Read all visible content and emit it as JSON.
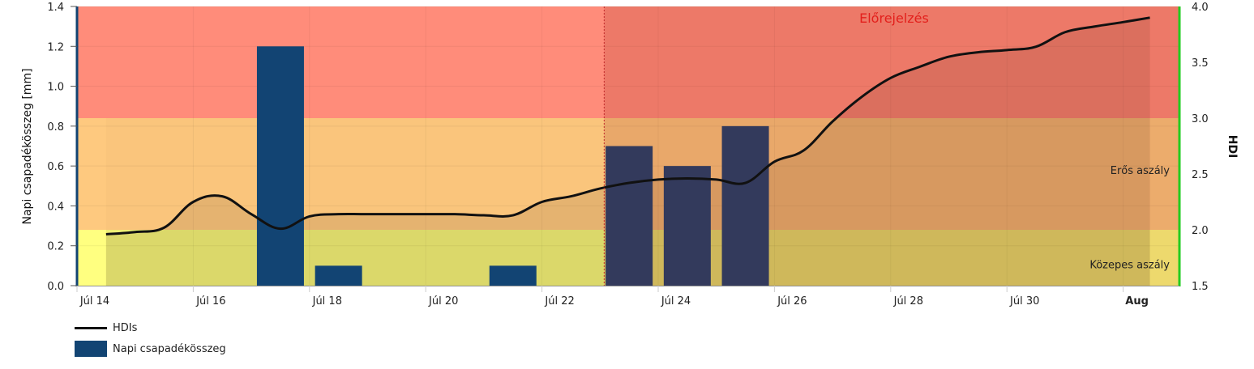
{
  "chart_data": {
    "type": "bar+line",
    "y_left_label": "Napi csapadékösszeg [mm]",
    "y_left_range": [
      0,
      1.4
    ],
    "y_left_ticks": [
      "0.0",
      "0.2",
      "0.4",
      "0.6",
      "0.8",
      "1.0",
      "1.2",
      "1.4"
    ],
    "y_right_label": "HDI",
    "y_right_range": [
      1.5,
      4.0
    ],
    "y_right_ticks": [
      "1.5",
      "2.0",
      "2.5",
      "3.0",
      "3.5",
      "4.0"
    ],
    "x_ticks": [
      {
        "day": 0,
        "label": "Júl 14"
      },
      {
        "day": 2,
        "label": "Júl 16"
      },
      {
        "day": 4,
        "label": "Júl 18"
      },
      {
        "day": 6,
        "label": "Júl 20"
      },
      {
        "day": 8,
        "label": "Júl 22"
      },
      {
        "day": 10,
        "label": "Júl 24"
      },
      {
        "day": 12,
        "label": "Júl 26"
      },
      {
        "day": 14,
        "label": "Júl 28"
      },
      {
        "day": 16,
        "label": "Júl 30"
      },
      {
        "day": 18,
        "label": "Aug",
        "bold": true
      }
    ],
    "forecast_start_day": 9.07,
    "forecast_label": "Előrejelzés",
    "bands": [
      {
        "from": 1.5,
        "to": 2.0,
        "label": "Közepes aszály",
        "color": "#ffff80"
      },
      {
        "from": 2.0,
        "to": 3.0,
        "label": "Erős aszály",
        "color": "#fec97f"
      },
      {
        "from": 3.0,
        "to": 4.0,
        "label": "",
        "color": "#ff8c7a"
      }
    ],
    "series": [
      {
        "name": "Napi csapadékösszeg",
        "type": "bar",
        "color": "#124473",
        "forecast_color": "#333a5c",
        "points": [
          {
            "date": "Júl 17",
            "day": 3,
            "value": 1.2,
            "forecast": false
          },
          {
            "date": "Júl 18",
            "day": 4,
            "value": 0.1,
            "forecast": false
          },
          {
            "date": "Júl 21",
            "day": 7,
            "value": 0.1,
            "forecast": false
          },
          {
            "date": "Júl 23",
            "day": 9,
            "value": 0.7,
            "forecast": true
          },
          {
            "date": "Júl 24",
            "day": 10,
            "value": 0.6,
            "forecast": true
          },
          {
            "date": "Júl 25",
            "day": 11,
            "value": 0.8,
            "forecast": true
          }
        ]
      },
      {
        "name": "HDIs",
        "type": "line",
        "color": "#111111",
        "points": [
          [
            0.5,
            1.96
          ],
          [
            1,
            1.98
          ],
          [
            1.5,
            2.02
          ],
          [
            2,
            2.25
          ],
          [
            2.5,
            2.3
          ],
          [
            3,
            2.14
          ],
          [
            3.5,
            2.01
          ],
          [
            4,
            2.12
          ],
          [
            4.5,
            2.14
          ],
          [
            5,
            2.14
          ],
          [
            6,
            2.14
          ],
          [
            6.5,
            2.14
          ],
          [
            7,
            2.13
          ],
          [
            7.5,
            2.13
          ],
          [
            8,
            2.25
          ],
          [
            8.5,
            2.3
          ],
          [
            9,
            2.37
          ],
          [
            9.5,
            2.42
          ],
          [
            10,
            2.45
          ],
          [
            10.5,
            2.46
          ],
          [
            11,
            2.45
          ],
          [
            11.5,
            2.42
          ],
          [
            12,
            2.61
          ],
          [
            12.5,
            2.71
          ],
          [
            13,
            2.97
          ],
          [
            13.5,
            3.19
          ],
          [
            14,
            3.36
          ],
          [
            14.5,
            3.46
          ],
          [
            15,
            3.55
          ],
          [
            15.5,
            3.59
          ],
          [
            16,
            3.61
          ],
          [
            16.5,
            3.64
          ],
          [
            17,
            3.77
          ],
          [
            17.5,
            3.82
          ],
          [
            18,
            3.86
          ],
          [
            18.46,
            3.9
          ]
        ]
      }
    ],
    "legend": [
      "HDIs",
      "Napi csapadékösszeg"
    ]
  }
}
